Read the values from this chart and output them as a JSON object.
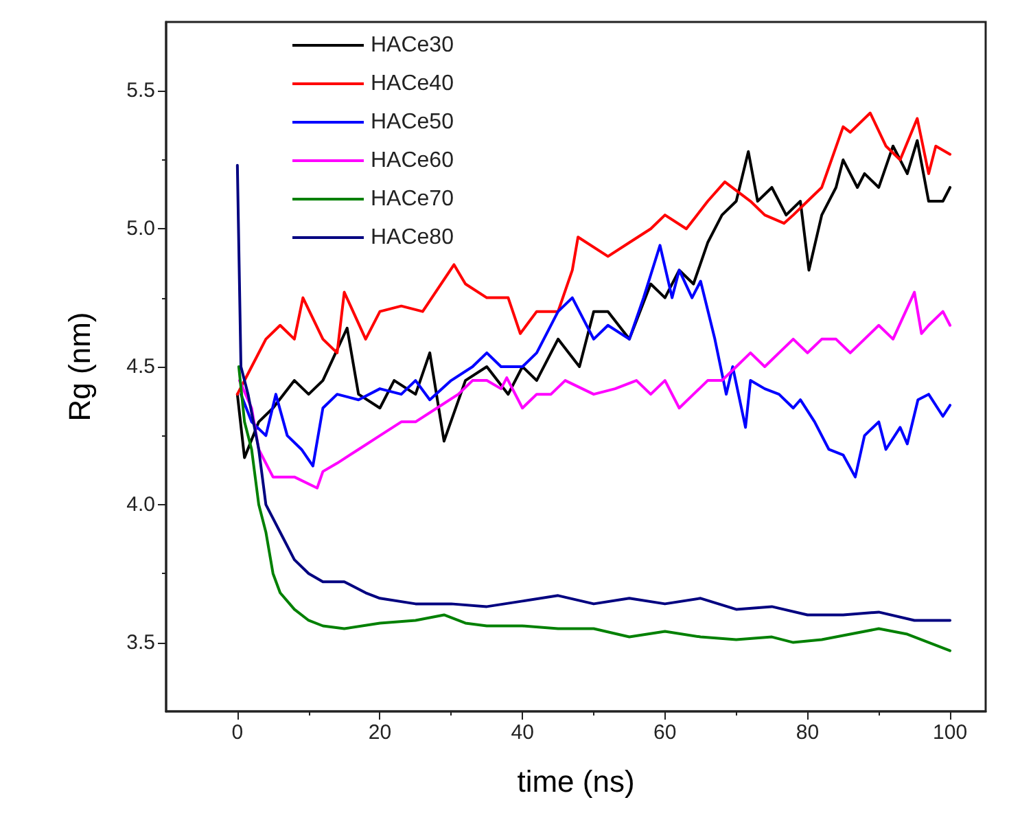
{
  "chart_data": {
    "type": "line",
    "xlabel": "time (ns)",
    "ylabel": "Rg (nm)",
    "xlim": [
      -10,
      105
    ],
    "ylim": [
      3.25,
      5.75
    ],
    "xticks": [
      0,
      20,
      40,
      60,
      80,
      100
    ],
    "yticks": [
      {
        "value": 3.5,
        "label": "3.5"
      },
      {
        "value": 4,
        "label": "4.0"
      },
      {
        "value": 4.5,
        "label": "4.5"
      },
      {
        "value": 5,
        "label": "5.0"
      },
      {
        "value": 5.5,
        "label": "5.5"
      }
    ],
    "grid": false,
    "legend": "top left",
    "marker": "none",
    "line_style": "solid",
    "series": [
      {
        "name": "HACe30",
        "color": "#000000",
        "x": [
          0,
          1,
          3,
          5,
          8,
          10,
          12,
          15.4,
          17,
          20,
          22,
          25,
          27,
          29,
          32,
          35,
          38,
          40,
          42,
          45,
          48,
          50,
          52,
          55,
          58,
          60,
          62,
          64,
          66,
          68,
          70,
          71.7,
          73,
          75,
          77,
          79,
          80.2,
          82,
          84,
          85,
          87,
          88,
          90,
          92,
          94,
          95.4,
          97,
          99,
          100
        ],
        "values": [
          4.4,
          4.17,
          4.3,
          4.35,
          4.45,
          4.4,
          4.45,
          4.64,
          4.4,
          4.35,
          4.45,
          4.4,
          4.55,
          4.23,
          4.45,
          4.5,
          4.4,
          4.5,
          4.45,
          4.6,
          4.5,
          4.7,
          4.7,
          4.6,
          4.8,
          4.75,
          4.85,
          4.8,
          4.95,
          5.05,
          5.1,
          5.28,
          5.1,
          5.15,
          5.05,
          5.1,
          4.85,
          5.05,
          5.15,
          5.25,
          5.15,
          5.2,
          5.15,
          5.3,
          5.2,
          5.32,
          5.1,
          5.1,
          5.15
        ]
      },
      {
        "name": "HACe40",
        "color": "#ff0000",
        "x": [
          0,
          2,
          4,
          6,
          8,
          9.2,
          12,
          14,
          15,
          18,
          20,
          23,
          26,
          30.4,
          32,
          35,
          38,
          39.7,
          42,
          45,
          47,
          47.8,
          52,
          55,
          58,
          60,
          63,
          66,
          68.4,
          72,
          74,
          76.7,
          78,
          80,
          82,
          85,
          86,
          88.8,
          91,
          93,
          95.4,
          97,
          98,
          100
        ],
        "values": [
          4.4,
          4.5,
          4.6,
          4.65,
          4.6,
          4.75,
          4.6,
          4.55,
          4.77,
          4.6,
          4.7,
          4.72,
          4.7,
          4.87,
          4.8,
          4.75,
          4.75,
          4.62,
          4.7,
          4.7,
          4.85,
          4.97,
          4.9,
          4.95,
          5.0,
          5.05,
          5.0,
          5.1,
          5.17,
          5.1,
          5.05,
          5.02,
          5.05,
          5.1,
          5.15,
          5.37,
          5.35,
          5.42,
          5.3,
          5.25,
          5.4,
          5.2,
          5.3,
          5.27
        ]
      },
      {
        "name": "HACe50",
        "color": "#0000ff",
        "x": [
          0.5,
          2,
          4,
          5.4,
          7,
          9,
          10.6,
          12,
          14,
          17,
          20,
          23,
          25,
          27,
          30,
          33,
          35,
          37,
          40,
          42,
          45,
          47,
          50,
          52,
          55,
          57,
          59.3,
          61,
          62,
          63.8,
          65,
          67,
          68.6,
          69.5,
          71.3,
          72,
          74,
          76,
          78,
          79,
          81,
          83,
          85,
          86.7,
          88,
          90,
          91,
          93,
          94,
          95.5,
          97,
          99,
          100
        ],
        "values": [
          4.4,
          4.3,
          4.25,
          4.4,
          4.25,
          4.2,
          4.14,
          4.35,
          4.4,
          4.38,
          4.42,
          4.4,
          4.45,
          4.38,
          4.45,
          4.5,
          4.55,
          4.5,
          4.5,
          4.55,
          4.7,
          4.75,
          4.6,
          4.65,
          4.6,
          4.75,
          4.94,
          4.75,
          4.85,
          4.75,
          4.81,
          4.6,
          4.4,
          4.5,
          4.28,
          4.45,
          4.42,
          4.4,
          4.35,
          4.38,
          4.3,
          4.2,
          4.18,
          4.1,
          4.25,
          4.3,
          4.2,
          4.28,
          4.22,
          4.38,
          4.4,
          4.32,
          4.36
        ]
      },
      {
        "name": "HACe60",
        "color": "#ff00ff",
        "x": [
          0.3,
          2,
          3,
          5,
          8,
          11.2,
          12,
          14,
          17,
          20,
          23,
          25,
          28,
          31,
          33,
          35,
          37,
          37.8,
          40,
          42,
          44,
          46,
          50,
          53,
          56,
          58,
          60,
          62,
          64,
          66,
          68,
          70,
          72,
          74,
          76,
          78,
          80,
          82,
          84,
          86,
          88,
          90,
          92,
          95,
          96,
          97,
          99,
          100
        ],
        "values": [
          4.45,
          4.35,
          4.2,
          4.1,
          4.1,
          4.06,
          4.12,
          4.15,
          4.2,
          4.25,
          4.3,
          4.3,
          4.35,
          4.4,
          4.45,
          4.45,
          4.42,
          4.46,
          4.35,
          4.4,
          4.4,
          4.45,
          4.4,
          4.42,
          4.45,
          4.4,
          4.45,
          4.35,
          4.4,
          4.45,
          4.45,
          4.5,
          4.55,
          4.5,
          4.55,
          4.6,
          4.55,
          4.6,
          4.6,
          4.55,
          4.6,
          4.65,
          4.6,
          4.77,
          4.62,
          4.65,
          4.7,
          4.65
        ]
      },
      {
        "name": "HACe70",
        "color": "#008000",
        "x": [
          0.2,
          1,
          2,
          3,
          4,
          5,
          6,
          8,
          10,
          12,
          15,
          20,
          25,
          29,
          32,
          35,
          40,
          45,
          50,
          55,
          60,
          65,
          70,
          75,
          78,
          82,
          86,
          90,
          94,
          97,
          100
        ],
        "values": [
          4.5,
          4.3,
          4.2,
          4.0,
          3.9,
          3.75,
          3.68,
          3.62,
          3.58,
          3.56,
          3.55,
          3.57,
          3.58,
          3.6,
          3.57,
          3.56,
          3.56,
          3.55,
          3.55,
          3.52,
          3.54,
          3.52,
          3.51,
          3.52,
          3.5,
          3.51,
          3.53,
          3.55,
          3.53,
          3.5,
          3.47
        ]
      },
      {
        "name": "HACe80",
        "color": "#000080",
        "x": [
          0,
          0.5,
          1.5,
          3,
          4,
          6,
          8,
          10,
          12,
          15,
          18,
          20,
          25,
          30,
          35,
          40,
          45,
          50,
          55,
          60,
          65,
          70,
          75,
          80,
          85,
          90,
          95,
          100
        ],
        "values": [
          5.23,
          4.5,
          4.4,
          4.2,
          4.0,
          3.9,
          3.8,
          3.75,
          3.72,
          3.72,
          3.68,
          3.66,
          3.64,
          3.64,
          3.63,
          3.65,
          3.67,
          3.64,
          3.66,
          3.64,
          3.66,
          3.62,
          3.63,
          3.6,
          3.6,
          3.61,
          3.58,
          3.58
        ]
      }
    ]
  }
}
